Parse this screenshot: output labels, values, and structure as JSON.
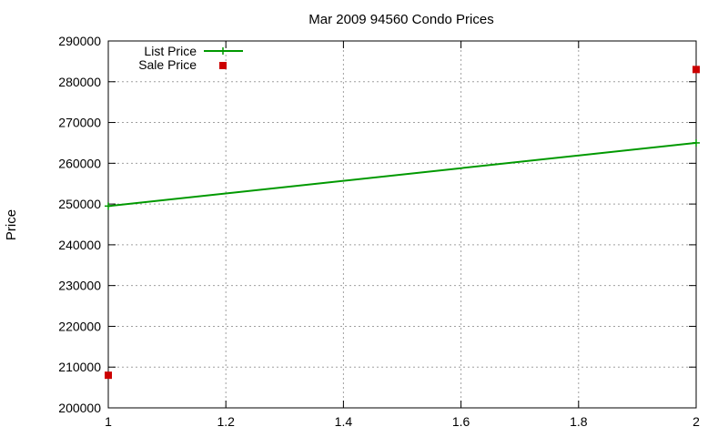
{
  "chart_data": {
    "type": "line",
    "title": "Mar 2009 94560 Condo Prices",
    "xlabel": "",
    "ylabel": "Price",
    "xlim": [
      1,
      2
    ],
    "ylim": [
      200000,
      290000
    ],
    "xticks": [
      1,
      1.2,
      1.4,
      1.6,
      1.8,
      2
    ],
    "xtick_labels": [
      "1",
      "1.2",
      "1.4",
      "1.6",
      "1.8",
      "2"
    ],
    "yticks": [
      200000,
      210000,
      220000,
      230000,
      240000,
      250000,
      260000,
      270000,
      280000,
      290000
    ],
    "ytick_labels": [
      "200000",
      "210000",
      "220000",
      "230000",
      "240000",
      "250000",
      "260000",
      "270000",
      "280000",
      "290000"
    ],
    "grid": true,
    "legend_position": "top-left",
    "series": [
      {
        "name": "List Price",
        "style": "line",
        "color": "#009900",
        "x": [
          1,
          2
        ],
        "y": [
          249500,
          265000
        ]
      },
      {
        "name": "Sale Price",
        "style": "points",
        "color": "#cc0000",
        "x": [
          1,
          2
        ],
        "y": [
          208000,
          283000
        ]
      }
    ]
  }
}
